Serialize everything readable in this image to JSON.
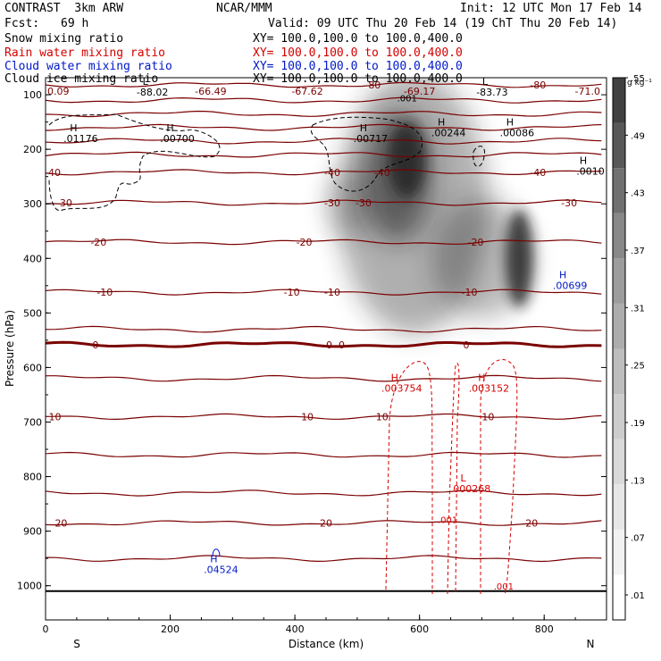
{
  "header": {
    "model": "CONTRAST  3km ARW",
    "org": "NCAR/MMM",
    "init": "Init: 12 UTC Mon 17 Feb 14",
    "fcst_label": "Fcst:",
    "fcst_value": "69 h",
    "valid": "Valid: 09 UTC Thu 20 Feb 14 (19 ChT Thu 20 Feb 14)",
    "fields": [
      {
        "name": "Snow mixing ratio",
        "xy": "XY= 100.0,100.0 to 100.0,400.0",
        "color": "#000000"
      },
      {
        "name": "Rain water mixing ratio",
        "xy": "XY= 100.0,100.0 to 100.0,400.0",
        "color": "#d40000"
      },
      {
        "name": "Cloud water mixing ratio",
        "xy": "XY= 100.0,100.0 to 100.0,400.0",
        "color": "#0018c8"
      },
      {
        "name": "Cloud ice mixing ratio",
        "xy": "XY= 100.0,100.0 to 100.0,400.0",
        "color": "#000000"
      }
    ]
  },
  "chart_data": {
    "type": "cross-section",
    "xlabel": "Distance (km)",
    "ylabel": "Pressure (hPa)",
    "x_ticks": [
      0,
      200,
      400,
      600,
      800
    ],
    "y_ticks": [
      100,
      200,
      300,
      400,
      500,
      600,
      700,
      800,
      900,
      1000
    ],
    "xlim": [
      0,
      900
    ],
    "ylim": [
      1000,
      50
    ],
    "left_end": "S",
    "right_end": "N",
    "colorbar": {
      "units": "g kg⁻¹",
      "ticks": [
        ".01",
        ".07",
        ".13",
        ".19",
        ".25",
        ".31",
        ".37",
        ".43",
        ".49",
        ".55"
      ],
      "colors": [
        "#ffffff",
        "#f2f2f2",
        "#e6e6e6",
        "#d9d9d9",
        "#cccccc",
        "#bdbdbd",
        "#adadad",
        "#9c9c9c",
        "#888888",
        "#707070",
        "#585858",
        "#404040"
      ]
    },
    "snow_maxima": [
      {
        "x": 580,
        "p": 260,
        "value": 0.55
      },
      {
        "x": 760,
        "p": 410,
        "value": 0.49
      },
      {
        "x": 600,
        "p": 190,
        "value": 0.43
      }
    ],
    "temperature_isotherms_degC": [
      {
        "level": -80,
        "p": 82,
        "labels": [
          {
            "x": 525,
            "text": "-80"
          },
          {
            "x": 790,
            "text": "-80"
          }
        ]
      },
      {
        "level": -40,
        "p": 242,
        "labels": [
          {
            "x": -30,
            "text": "-40"
          },
          {
            "x": 460,
            "text": "-40"
          },
          {
            "x": 540,
            "text": "-40"
          },
          {
            "x": 790,
            "text": "-40"
          }
        ]
      },
      {
        "level": -30,
        "p": 298,
        "labels": [
          {
            "x": 30,
            "text": "-30"
          },
          {
            "x": 460,
            "text": "-30"
          },
          {
            "x": 510,
            "text": "-30"
          },
          {
            "x": 840,
            "text": "-30"
          }
        ]
      },
      {
        "level": -20,
        "p": 370,
        "labels": [
          {
            "x": 85,
            "text": "-20"
          },
          {
            "x": 415,
            "text": "-20"
          },
          {
            "x": 690,
            "text": "-20"
          }
        ]
      },
      {
        "level": -10,
        "p": 462,
        "labels": [
          {
            "x": 95,
            "text": "-10"
          },
          {
            "x": 395,
            "text": "-10"
          },
          {
            "x": 460,
            "text": "-10"
          },
          {
            "x": 680,
            "text": "-10"
          }
        ]
      },
      {
        "level": 0,
        "p": 558,
        "labels": [
          {
            "x": 80,
            "text": "0"
          },
          {
            "x": 455,
            "text": "0"
          },
          {
            "x": 475,
            "text": "0"
          },
          {
            "x": 675,
            "text": "0"
          }
        ]
      },
      {
        "level": 10,
        "p": 690,
        "labels": [
          {
            "x": 15,
            "text": "10"
          },
          {
            "x": 420,
            "text": "10"
          },
          {
            "x": 540,
            "text": "10"
          },
          {
            "x": 710,
            "text": "10"
          }
        ]
      },
      {
        "level": 20,
        "p": 885,
        "labels": [
          {
            "x": 25,
            "text": "20"
          },
          {
            "x": 450,
            "text": "20"
          },
          {
            "x": 780,
            "text": "20"
          }
        ]
      }
    ],
    "other_isotherm_levels_hPa": [
      110,
      135,
      160,
      185,
      210,
      530,
      620,
      760,
      830,
      950
    ],
    "top_row_values": [
      {
        "x": -20,
        "text": "0.09"
      },
      {
        "x": 265,
        "text": "-66.49"
      },
      {
        "x": 420,
        "text": "-67.62"
      },
      {
        "x": 600,
        "text": "-69.17"
      },
      {
        "x": 890,
        "text": "-71.0"
      }
    ],
    "annotations": [
      {
        "kind": "L",
        "x": 160,
        "p": 85,
        "value": "-88.02",
        "color": "#000000"
      },
      {
        "kind": "L",
        "x": 705,
        "p": 85,
        "value": "-83.73",
        "color": "#000000"
      },
      {
        "kind": "H",
        "x": 45,
        "p": 170,
        "value": ".01176",
        "color": "#000000"
      },
      {
        "kind": "H",
        "x": 200,
        "p": 170,
        "value": ".00700",
        "color": "#000000"
      },
      {
        "kind": "H",
        "x": 510,
        "p": 170,
        "value": ".00717",
        "color": "#000000"
      },
      {
        "kind": "H",
        "x": 635,
        "p": 160,
        "value": ".00244",
        "color": "#000000"
      },
      {
        "kind": "H",
        "x": 745,
        "p": 160,
        "value": ".00086",
        "color": "#000000"
      },
      {
        "kind": "H",
        "x": 885,
        "p": 230,
        "value": ".0010",
        "color": "#000000"
      },
      {
        "kind": "H",
        "x": 830,
        "p": 440,
        "value": ".00699",
        "color": "#0018c8"
      },
      {
        "kind": "H",
        "x": 270,
        "p": 960,
        "value": ".04524",
        "color": "#0018c8"
      },
      {
        "kind": "H",
        "x": 560,
        "p": 628,
        "value": ".003754",
        "color": "#d40000"
      },
      {
        "kind": "H",
        "x": 700,
        "p": 628,
        "value": ".003152",
        "color": "#d40000"
      },
      {
        "kind": "L",
        "x": 670,
        "p": 812,
        "value": ".000268",
        "color": "#d40000"
      }
    ],
    "rain_contour_labels": [
      {
        "x": 645,
        "p": 880,
        "text": ".001"
      },
      {
        "x": 735,
        "p": 1002,
        "text": ".001"
      }
    ],
    "cloud_ice_label": {
      "x": 580,
      "p": 107,
      "text": ".001"
    }
  }
}
